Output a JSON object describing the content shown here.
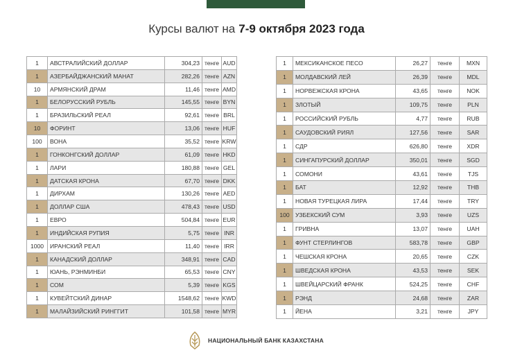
{
  "header": {
    "title": "Курсы валют на",
    "title_bold": "7-9 октября 2023 года"
  },
  "tables": [
    {
      "rows": [
        [
          "1",
          "АВСТРАЛИЙСКИЙ ДОЛЛАР",
          "304,23",
          "тенге",
          "AUD"
        ],
        [
          "1",
          "АЗЕРБАЙДЖАНСКИЙ МАНАТ",
          "282,26",
          "тенге",
          "AZN"
        ],
        [
          "10",
          "АРМЯНСКИЙ ДРАМ",
          "11,46",
          "тенге",
          "AMD"
        ],
        [
          "1",
          "БЕЛОРУССКИЙ РУБЛЬ",
          "145,55",
          "тенге",
          "BYN"
        ],
        [
          "1",
          "БРАЗИЛЬСКИЙ РЕАЛ",
          "92,61",
          "тенге",
          "BRL"
        ],
        [
          "10",
          "ФОРИНТ",
          "13,06",
          "тенге",
          "HUF"
        ],
        [
          "100",
          "ВОНА",
          "35,52",
          "тенге",
          "KRW"
        ],
        [
          "1",
          "ГОНКОНГСКИЙ ДОЛЛАР",
          "61,09",
          "тенге",
          "HKD"
        ],
        [
          "1",
          "ЛАРИ",
          "180,88",
          "тенге",
          "GEL"
        ],
        [
          "1",
          "ДАТСКАЯ КРОНА",
          "67,70",
          "тенге",
          "DKK"
        ],
        [
          "1",
          "ДИРХАМ",
          "130,26",
          "тенге",
          "AED"
        ],
        [
          "1",
          "ДОЛЛАР США",
          "478,43",
          "тенге",
          "USD"
        ],
        [
          "1",
          "ЕВРО",
          "504,84",
          "тенге",
          "EUR"
        ],
        [
          "1",
          "ИНДИЙСКАЯ РУПИЯ",
          "5,75",
          "тенге",
          "INR"
        ],
        [
          "1000",
          "ИРАНСКИЙ РЕАЛ",
          "11,40",
          "тенге",
          "IRR"
        ],
        [
          "1",
          "КАНАДСКИЙ ДОЛЛАР",
          "348,91",
          "тенге",
          "CAD"
        ],
        [
          "1",
          "ЮАНЬ, РЭНМИНБИ",
          "65,53",
          "тенге",
          "CNY"
        ],
        [
          "1",
          "СОМ",
          "5,39",
          "тенге",
          "KGS"
        ],
        [
          "1",
          "КУВЕЙТСКИЙ ДИНАР",
          "1548,62",
          "тенге",
          "KWD"
        ],
        [
          "1",
          "МАЛАЙЗИЙСКИЙ РИНГГИТ",
          "101,58",
          "тенге",
          "MYR"
        ]
      ]
    },
    {
      "rows": [
        [
          "1",
          "МЕКСИКАНСКОЕ ПЕСО",
          "26,27",
          "тенге",
          "MXN"
        ],
        [
          "1",
          "МОЛДАВСКИЙ ЛЕЙ",
          "26,39",
          "тенге",
          "MDL"
        ],
        [
          "1",
          "НОРВЕЖСКАЯ КРОНА",
          "43,65",
          "тенге",
          "NOK"
        ],
        [
          "1",
          "ЗЛОТЫЙ",
          "109,75",
          "тенге",
          "PLN"
        ],
        [
          "1",
          "РОССИЙСКИЙ РУБЛЬ",
          "4,77",
          "тенге",
          "RUB"
        ],
        [
          "1",
          "САУДОВСКИЙ РИЯЛ",
          "127,56",
          "тенге",
          "SAR"
        ],
        [
          "1",
          "СДР",
          "626,80",
          "тенге",
          "XDR"
        ],
        [
          "1",
          "СИНГАПУРСКИЙ ДОЛЛАР",
          "350,01",
          "тенге",
          "SGD"
        ],
        [
          "1",
          "СОМОНИ",
          "43,61",
          "тенге",
          "TJS"
        ],
        [
          "1",
          "БАТ",
          "12,92",
          "тенге",
          "THB"
        ],
        [
          "1",
          "НОВАЯ ТУРЕЦКАЯ ЛИРА",
          "17,44",
          "тенге",
          "TRY"
        ],
        [
          "100",
          "УЗБЕКСКИЙ СУМ",
          "3,93",
          "тенге",
          "UZS"
        ],
        [
          "1",
          "ГРИВНА",
          "13,07",
          "тенге",
          "UAH"
        ],
        [
          "1",
          "ФУНТ СТЕРЛИНГОВ",
          "583,78",
          "тенге",
          "GBP"
        ],
        [
          "1",
          "ЧЕШСКАЯ КРОНА",
          "20,65",
          "тенге",
          "CZK"
        ],
        [
          "1",
          "ШВЕДСКАЯ КРОНА",
          "43,53",
          "тенге",
          "SEK"
        ],
        [
          "1",
          "ШВЕЙЦАРСКИЙ ФРАНК",
          "524,25",
          "тенге",
          "CHF"
        ],
        [
          "1",
          "РЭНД",
          "24,68",
          "тенге",
          "ZAR"
        ],
        [
          "1",
          "ЙЕНА",
          "3,21",
          "тенге",
          "JPY"
        ]
      ]
    }
  ],
  "footer": {
    "bank": "НАЦИОНАЛЬНЫЙ БАНК КАЗАХСТАНА"
  }
}
